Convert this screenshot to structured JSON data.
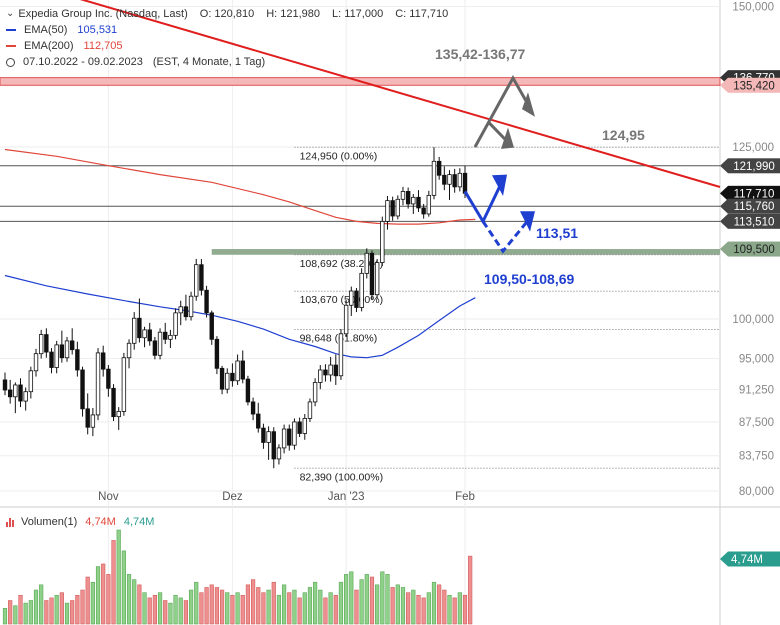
{
  "header": {
    "title": "Expedia Group Inc. (Nasdaq, Last)",
    "ohlc": {
      "O": "O: 120,810",
      "H": "H: 121,980",
      "L": "L: 117,000",
      "C": "C: 117,710"
    },
    "ema50": {
      "label": "EMA(50)",
      "value": "105,531",
      "color": "#1f3fd0"
    },
    "ema200": {
      "label": "EMA(200)",
      "value": "112,705",
      "color": "#e0463a"
    },
    "period": "07.10.2022 - 09.02.2023",
    "period_detail": "(EST, 4 Monate, 1 Tag)"
  },
  "volume_legend": {
    "label": "Volumen(1)",
    "value1": "4,74M",
    "value2": "4,74M",
    "badge": "4,74M"
  },
  "chart_data": {
    "type": "candlestick",
    "y_ticks": [
      150000,
      125000,
      100000,
      95000,
      91250,
      87500,
      83750,
      80000
    ],
    "y_tick_labels": [
      "150,000",
      "125,000",
      "100,000",
      "95,000",
      "91,250",
      "87,500",
      "83,750",
      "80,000"
    ],
    "x_ticks": [
      "Nov",
      "Dez",
      "Jan '23",
      "Feb"
    ],
    "price_badges": [
      {
        "value": 136.77,
        "label": "136,770",
        "bg": "#333333",
        "fg": "#ffffff"
      },
      {
        "value": 135.42,
        "label": "135,420",
        "bg": "#f4b8b8",
        "fg": "#222222"
      },
      {
        "value": 121.99,
        "label": "121,990",
        "bg": "#444444",
        "fg": "#ffffff"
      },
      {
        "value": 117.71,
        "label": "117,710",
        "bg": "#111111",
        "fg": "#ffffff"
      },
      {
        "value": 115.76,
        "label": "115,760",
        "bg": "#444444",
        "fg": "#ffffff"
      },
      {
        "value": 113.51,
        "label": "113,510",
        "bg": "#444444",
        "fg": "#ffffff"
      },
      {
        "value": 109.5,
        "label": "109,500",
        "bg": "#8aa78a",
        "fg": "#222222"
      }
    ],
    "fib_levels": [
      {
        "value": 124.95,
        "label": "124,950 (0.00%)"
      },
      {
        "value": 108.692,
        "label": "108,692 (38.20%)"
      },
      {
        "value": 103.67,
        "label": "103,670 (50.00%)"
      },
      {
        "value": 98.648,
        "label": "98,648 (61.80%)"
      },
      {
        "value": 82.39,
        "label": "82,390 (100.00%)"
      }
    ],
    "horizontal_lines": [
      121.99,
      115.76,
      113.51
    ],
    "resistance_zone": [
      135.42,
      136.77
    ],
    "support_zone": [
      108.69,
      109.5
    ],
    "annotations": [
      {
        "text": "135,42-136,77",
        "color": "#777777"
      },
      {
        "text": "124,95",
        "color": "#777777"
      },
      {
        "text": "113,51",
        "color": "#1f3fd0"
      },
      {
        "text": "109,50-108,69",
        "color": "#1f3fd0"
      }
    ],
    "candles": [
      [
        92.4,
        93.3,
        90.6,
        91.2
      ],
      [
        91.2,
        92.4,
        89.6,
        90.4
      ],
      [
        90.4,
        92.1,
        88.5,
        91.8
      ],
      [
        91.8,
        92.6,
        89.2,
        89.9
      ],
      [
        89.9,
        91.5,
        88.8,
        91.0
      ],
      [
        91.0,
        94.0,
        90.2,
        93.5
      ],
      [
        93.5,
        96.2,
        92.8,
        95.6
      ],
      [
        95.6,
        98.6,
        95.0,
        98.0
      ],
      [
        98.0,
        98.8,
        95.1,
        95.8
      ],
      [
        95.8,
        96.3,
        93.2,
        93.9
      ],
      [
        93.9,
        97.2,
        93.2,
        96.7
      ],
      [
        96.7,
        98.5,
        94.5,
        95.1
      ],
      [
        95.1,
        97.7,
        94.6,
        97.2
      ],
      [
        97.2,
        98.8,
        95.5,
        96.1
      ],
      [
        96.1,
        97.1,
        92.8,
        93.6
      ],
      [
        93.6,
        94.0,
        88.1,
        89.0
      ],
      [
        89.0,
        90.8,
        86.1,
        86.9
      ],
      [
        86.9,
        89.1,
        85.9,
        88.3
      ],
      [
        88.3,
        96.3,
        87.7,
        95.7
      ],
      [
        95.7,
        96.6,
        92.8,
        93.7
      ],
      [
        93.7,
        94.2,
        90.4,
        91.4
      ],
      [
        91.4,
        91.9,
        87.6,
        88.1
      ],
      [
        88.1,
        89.2,
        86.6,
        88.7
      ],
      [
        88.7,
        95.7,
        88.2,
        95.1
      ],
      [
        95.1,
        97.4,
        93.8,
        96.9
      ],
      [
        96.9,
        100.9,
        96.1,
        100.1
      ],
      [
        100.1,
        102.7,
        97.0,
        97.6
      ],
      [
        97.6,
        99.0,
        96.4,
        98.6
      ],
      [
        98.6,
        99.5,
        96.6,
        97.2
      ],
      [
        97.2,
        97.7,
        94.9,
        95.4
      ],
      [
        95.4,
        98.8,
        94.9,
        98.3
      ],
      [
        98.3,
        99.5,
        96.8,
        97.4
      ],
      [
        97.4,
        98.6,
        96.3,
        97.9
      ],
      [
        97.9,
        101.4,
        97.4,
        100.8
      ],
      [
        100.8,
        102.4,
        99.2,
        101.6
      ],
      [
        101.6,
        103.2,
        99.8,
        100.3
      ],
      [
        100.3,
        103.6,
        99.8,
        103.0
      ],
      [
        103.0,
        108.1,
        102.4,
        107.3
      ],
      [
        107.3,
        108.1,
        103.1,
        103.8
      ],
      [
        103.8,
        104.4,
        100.2,
        100.8
      ],
      [
        100.8,
        101.1,
        96.7,
        97.4
      ],
      [
        97.4,
        97.8,
        93.1,
        93.8
      ],
      [
        93.8,
        94.1,
        90.7,
        91.3
      ],
      [
        91.3,
        93.8,
        90.8,
        93.2
      ],
      [
        93.2,
        94.4,
        91.6,
        92.3
      ],
      [
        92.3,
        95.5,
        91.8,
        94.7
      ],
      [
        94.7,
        96.0,
        92.0,
        92.5
      ],
      [
        92.5,
        92.9,
        89.4,
        89.8
      ],
      [
        89.8,
        90.3,
        87.7,
        88.4
      ],
      [
        88.4,
        89.7,
        86.3,
        86.8
      ],
      [
        86.8,
        87.3,
        84.5,
        85.2
      ],
      [
        85.2,
        87.0,
        83.3,
        86.4
      ],
      [
        86.4,
        86.9,
        82.4,
        83.4
      ],
      [
        83.4,
        85.0,
        82.8,
        84.6
      ],
      [
        84.6,
        87.2,
        84.0,
        86.7
      ],
      [
        86.7,
        87.2,
        84.3,
        84.9
      ],
      [
        84.9,
        87.9,
        84.4,
        87.5
      ],
      [
        87.5,
        88.0,
        85.8,
        86.2
      ],
      [
        86.2,
        88.4,
        85.5,
        87.9
      ],
      [
        87.9,
        90.2,
        87.5,
        89.8
      ],
      [
        89.8,
        92.6,
        89.3,
        92.1
      ],
      [
        92.1,
        94.2,
        91.3,
        93.6
      ],
      [
        93.6,
        94.3,
        92.2,
        93.0
      ],
      [
        93.0,
        95.2,
        92.2,
        94.2
      ],
      [
        94.2,
        95.5,
        91.8,
        92.9
      ],
      [
        92.9,
        98.7,
        92.4,
        98.1
      ],
      [
        98.1,
        102.5,
        97.7,
        101.8
      ],
      [
        101.8,
        104.3,
        100.4,
        103.7
      ],
      [
        103.7,
        104.1,
        100.9,
        101.5
      ],
      [
        101.5,
        106.8,
        101.0,
        106.1
      ],
      [
        106.1,
        109.6,
        105.4,
        108.9
      ],
      [
        108.9,
        109.3,
        102.5,
        103.2
      ],
      [
        103.2,
        108.1,
        102.7,
        107.6
      ],
      [
        107.6,
        114.2,
        107.1,
        113.5
      ],
      [
        113.5,
        117.3,
        112.3,
        116.6
      ],
      [
        116.6,
        117.2,
        113.6,
        114.3
      ],
      [
        114.3,
        117.4,
        113.8,
        116.8
      ],
      [
        116.8,
        118.7,
        115.9,
        118.0
      ],
      [
        118.0,
        118.6,
        115.4,
        116.1
      ],
      [
        116.1,
        117.6,
        114.6,
        117.1
      ],
      [
        117.1,
        118.2,
        114.9,
        115.5
      ],
      [
        115.5,
        116.1,
        113.9,
        114.6
      ],
      [
        114.6,
        118.1,
        114.2,
        117.4
      ],
      [
        117.4,
        124.95,
        116.8,
        122.7
      ],
      [
        122.7,
        123.4,
        119.8,
        120.5
      ],
      [
        120.5,
        121.9,
        118.2,
        119.1
      ],
      [
        119.1,
        121.3,
        116.7,
        120.6
      ],
      [
        120.6,
        121.5,
        117.8,
        118.7
      ],
      [
        118.7,
        121.6,
        118.0,
        120.8
      ],
      [
        120.81,
        121.98,
        117.0,
        117.71
      ]
    ],
    "ema50_line": [
      [
        0,
        105.8
      ],
      [
        8,
        104.4
      ],
      [
        16,
        103.3
      ],
      [
        24,
        102.3
      ],
      [
        30,
        101.6
      ],
      [
        35,
        101.1
      ],
      [
        40,
        100.5
      ],
      [
        45,
        99.7
      ],
      [
        50,
        98.7
      ],
      [
        55,
        97.4
      ],
      [
        60,
        96.5
      ],
      [
        64,
        95.6
      ],
      [
        67,
        95.2
      ],
      [
        70,
        95.1
      ],
      [
        73,
        95.4
      ],
      [
        76,
        96.4
      ],
      [
        80,
        97.9
      ],
      [
        84,
        99.8
      ],
      [
        88,
        101.7
      ],
      [
        91,
        102.8
      ]
    ],
    "ema200_line": [
      [
        0,
        124.6
      ],
      [
        10,
        123.5
      ],
      [
        20,
        122.0
      ],
      [
        30,
        120.6
      ],
      [
        40,
        119.4
      ],
      [
        50,
        117.5
      ],
      [
        55,
        116.4
      ],
      [
        60,
        115.1
      ],
      [
        64,
        114.1
      ],
      [
        68,
        113.5
      ],
      [
        72,
        113.2
      ],
      [
        76,
        113.1
      ],
      [
        80,
        113.1
      ],
      [
        84,
        113.3
      ],
      [
        88,
        113.7
      ],
      [
        91,
        113.8
      ]
    ],
    "volume": [
      [
        0,
        0.6,
        1
      ],
      [
        1,
        0.9,
        0
      ],
      [
        2,
        0.7,
        1
      ],
      [
        3,
        1.1,
        0
      ],
      [
        4,
        0.8,
        1
      ],
      [
        5,
        0.9,
        1
      ],
      [
        6,
        1.3,
        1
      ],
      [
        7,
        1.5,
        1
      ],
      [
        8,
        0.9,
        0
      ],
      [
        9,
        1.0,
        0
      ],
      [
        10,
        1.1,
        1
      ],
      [
        11,
        1.2,
        0
      ],
      [
        12,
        0.8,
        1
      ],
      [
        13,
        0.9,
        0
      ],
      [
        14,
        1.1,
        0
      ],
      [
        15,
        1.3,
        0
      ],
      [
        16,
        1.8,
        0
      ],
      [
        17,
        1.6,
        1
      ],
      [
        18,
        2.2,
        1
      ],
      [
        19,
        2.3,
        0
      ],
      [
        20,
        1.9,
        0
      ],
      [
        21,
        3.2,
        0
      ],
      [
        22,
        3.6,
        1
      ],
      [
        23,
        2.8,
        1
      ],
      [
        24,
        1.9,
        1
      ],
      [
        25,
        1.7,
        1
      ],
      [
        26,
        1.5,
        0
      ],
      [
        27,
        1.2,
        1
      ],
      [
        28,
        1.0,
        0
      ],
      [
        29,
        1.1,
        0
      ],
      [
        30,
        1.2,
        1
      ],
      [
        31,
        0.9,
        0
      ],
      [
        32,
        0.8,
        1
      ],
      [
        33,
        1.1,
        1
      ],
      [
        34,
        1.0,
        1
      ],
      [
        35,
        0.9,
        0
      ],
      [
        36,
        1.3,
        1
      ],
      [
        37,
        1.6,
        1
      ],
      [
        38,
        1.2,
        0
      ],
      [
        39,
        1.4,
        0
      ],
      [
        40,
        1.5,
        0
      ],
      [
        41,
        1.4,
        0
      ],
      [
        42,
        1.3,
        0
      ],
      [
        43,
        1.2,
        1
      ],
      [
        44,
        1.1,
        0
      ],
      [
        45,
        1.2,
        1
      ],
      [
        46,
        1.1,
        0
      ],
      [
        47,
        1.5,
        0
      ],
      [
        48,
        1.7,
        0
      ],
      [
        49,
        1.4,
        0
      ],
      [
        50,
        1.2,
        0
      ],
      [
        51,
        1.3,
        1
      ],
      [
        52,
        1.6,
        0
      ],
      [
        53,
        1.1,
        1
      ],
      [
        54,
        1.5,
        1
      ],
      [
        55,
        1.2,
        0
      ],
      [
        56,
        1.3,
        1
      ],
      [
        57,
        1.0,
        0
      ],
      [
        58,
        1.2,
        1
      ],
      [
        59,
        1.4,
        1
      ],
      [
        60,
        1.6,
        1
      ],
      [
        61,
        1.3,
        1
      ],
      [
        62,
        1.0,
        0
      ],
      [
        63,
        1.2,
        1
      ],
      [
        64,
        1.1,
        0
      ],
      [
        65,
        1.6,
        1
      ],
      [
        66,
        1.9,
        1
      ],
      [
        67,
        2.0,
        1
      ],
      [
        68,
        1.3,
        0
      ],
      [
        69,
        1.7,
        1
      ],
      [
        70,
        1.9,
        1
      ],
      [
        71,
        1.8,
        0
      ],
      [
        72,
        1.5,
        1
      ],
      [
        73,
        2.0,
        1
      ],
      [
        74,
        1.9,
        1
      ],
      [
        75,
        1.4,
        0
      ],
      [
        76,
        1.5,
        1
      ],
      [
        77,
        1.4,
        1
      ],
      [
        78,
        1.2,
        0
      ],
      [
        79,
        1.3,
        1
      ],
      [
        80,
        1.1,
        0
      ],
      [
        81,
        1.0,
        0
      ],
      [
        82,
        1.2,
        1
      ],
      [
        83,
        1.6,
        1
      ],
      [
        84,
        1.5,
        0
      ],
      [
        85,
        1.3,
        0
      ],
      [
        86,
        1.1,
        1
      ],
      [
        87,
        1.0,
        0
      ],
      [
        88,
        1.2,
        1
      ],
      [
        89,
        1.1,
        0
      ],
      [
        90,
        2.6,
        0
      ]
    ]
  }
}
